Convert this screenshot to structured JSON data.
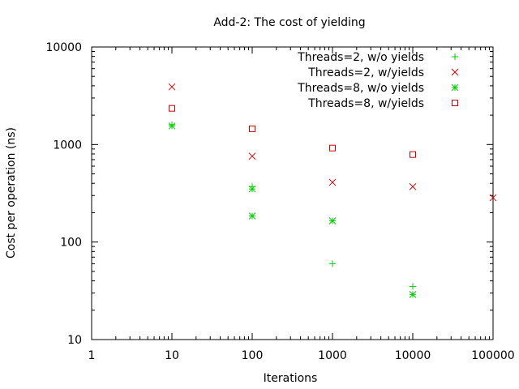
{
  "chart_data": {
    "type": "scatter",
    "title": "Add-2: The cost of yielding",
    "xlabel": "Iterations",
    "ylabel": "Cost per operation (ns)",
    "xscale": "log",
    "yscale": "log",
    "xlim": [
      1,
      100000
    ],
    "ylim": [
      10,
      10000
    ],
    "xticks": [
      {
        "value": 1,
        "label": "1"
      },
      {
        "value": 10,
        "label": "10"
      },
      {
        "value": 100,
        "label": "100"
      },
      {
        "value": 1000,
        "label": "1000"
      },
      {
        "value": 10000,
        "label": "10000"
      },
      {
        "value": 100000,
        "label": "100000"
      }
    ],
    "yticks": [
      {
        "value": 10,
        "label": "10"
      },
      {
        "value": 100,
        "label": "100"
      },
      {
        "value": 1000,
        "label": "1000"
      },
      {
        "value": 10000,
        "label": "10000"
      }
    ],
    "grid": false,
    "legend_position": "top-right",
    "series": [
      {
        "name": "Threads=2, w/o yields",
        "marker": "plus",
        "color": "#00cc00",
        "points": [
          [
            10,
            1600
          ],
          [
            100,
            370
          ],
          [
            1000,
            60
          ],
          [
            10000,
            35
          ]
        ]
      },
      {
        "name": "Threads=2, w/yields",
        "marker": "cross",
        "color": "#cc0000",
        "points": [
          [
            10,
            3900
          ],
          [
            100,
            760
          ],
          [
            1000,
            410
          ],
          [
            10000,
            370
          ],
          [
            100000,
            285
          ]
        ]
      },
      {
        "name": "Threads=8, w/o yields",
        "marker": "star",
        "color": "#00cc00",
        "points": [
          [
            10,
            1550
          ],
          [
            100,
            350
          ],
          [
            100,
            185
          ],
          [
            1000,
            165
          ],
          [
            10000,
            29
          ]
        ]
      },
      {
        "name": "Threads=8, w/yields",
        "marker": "square",
        "color": "#cc0000",
        "points": [
          [
            10,
            2350
          ],
          [
            100,
            1450
          ],
          [
            1000,
            920
          ],
          [
            10000,
            790
          ]
        ]
      }
    ]
  }
}
